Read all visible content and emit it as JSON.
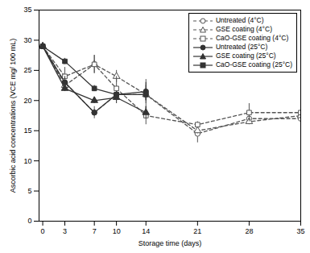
{
  "chart_data": {
    "type": "line",
    "xlabel": "Storage time (days)",
    "ylabel": "Ascorbic acid concentrations (VCE mg/ 100 mL)",
    "xlim": [
      -0.5,
      35
    ],
    "ylim": [
      0,
      35
    ],
    "xticks": [
      0,
      3,
      7,
      10,
      14,
      21,
      28,
      35
    ],
    "yticks": [
      0,
      5,
      10,
      15,
      20,
      25,
      30,
      35
    ],
    "legend": "upper right",
    "series": [
      {
        "name": "Untreated (4°C)",
        "color": "#555555",
        "marker": "circle-open",
        "line_style": "dashed",
        "x": [
          0,
          3,
          7,
          10,
          14,
          21,
          28,
          35
        ],
        "values": [
          29.0,
          23.0,
          18.0,
          21.0,
          21.0,
          14.5,
          17.0,
          17.0
        ],
        "yerr": [
          0.5,
          1.0,
          1.0,
          1.0,
          1.5,
          1.5,
          0.5,
          0.5
        ]
      },
      {
        "name": "GSE coating (4°C)",
        "color": "#555555",
        "marker": "triangle-open",
        "line_style": "dashed",
        "x": [
          0,
          3,
          7,
          10,
          14,
          21,
          28,
          35
        ],
        "values": [
          29.0,
          22.5,
          26.0,
          24.0,
          21.0,
          15.0,
          16.5,
          17.5
        ],
        "yerr": [
          0.5,
          0.5,
          1.5,
          1.0,
          2.5,
          0.5,
          0.5,
          0.5
        ]
      },
      {
        "name": "CaO-GSE coating (4°C)",
        "color": "#555555",
        "marker": "square-open",
        "line_style": "dashed",
        "x": [
          0,
          3,
          7,
          10,
          14,
          21,
          28,
          35
        ],
        "values": [
          29.0,
          24.0,
          26.0,
          22.0,
          17.5,
          16.0,
          18.0,
          18.0
        ],
        "yerr": [
          0.5,
          1.5,
          1.5,
          2.0,
          1.5,
          0.5,
          1.5,
          0.5
        ]
      },
      {
        "name": "Untreated (25°C)",
        "color": "#333333",
        "marker": "circle",
        "line_style": "solid",
        "x": [
          0,
          3,
          7,
          10,
          14
        ],
        "values": [
          29.0,
          23.0,
          18.0,
          21.0,
          21.5
        ],
        "yerr": [
          0.5,
          1.0,
          0.5,
          0.5,
          1.5
        ]
      },
      {
        "name": "GSE coating (25°C)",
        "color": "#333333",
        "marker": "triangle",
        "line_style": "solid",
        "x": [
          0,
          3,
          7,
          10,
          14
        ],
        "values": [
          29.0,
          22.0,
          20.0,
          20.5,
          18.0
        ],
        "yerr": [
          0.5,
          0.5,
          0.5,
          1.0,
          1.0
        ]
      },
      {
        "name": "CaO-GSE coating (25°C)",
        "color": "#333333",
        "marker": "square",
        "line_style": "solid",
        "x": [
          0,
          3,
          7,
          10,
          14
        ],
        "values": [
          29.0,
          26.5,
          22.0,
          21.0,
          21.0
        ],
        "yerr": [
          0.5,
          0.5,
          0.5,
          0.5,
          1.0
        ]
      }
    ]
  }
}
